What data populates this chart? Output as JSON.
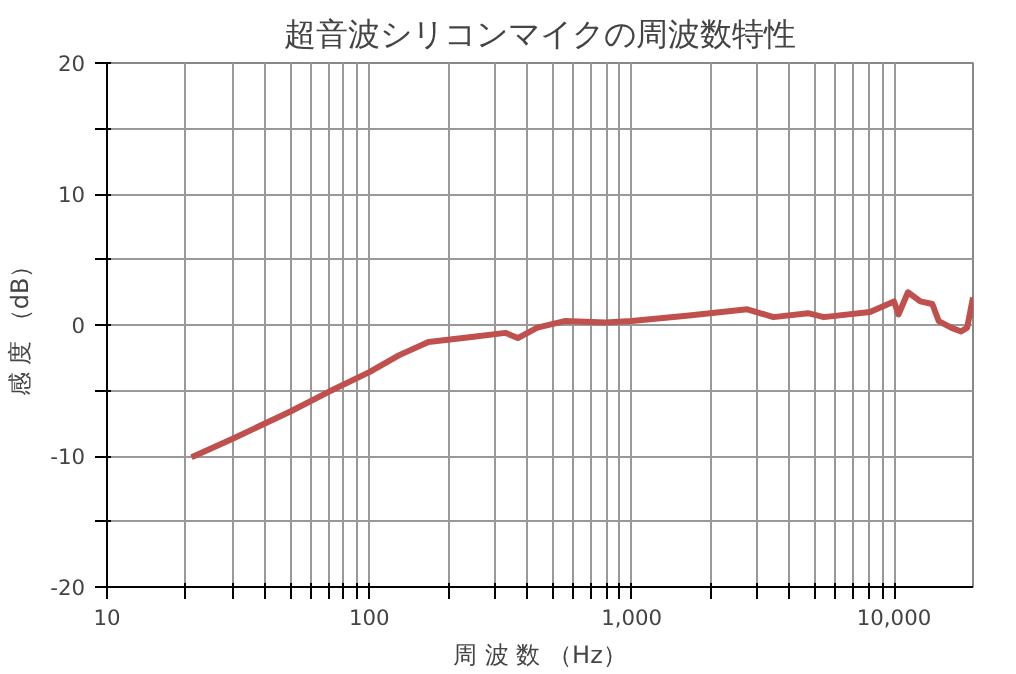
{
  "chart_data": {
    "type": "line",
    "title": "超音波シリコンマイクの周波数特性",
    "xlabel": "周 波 数 （Hz）",
    "ylabel": "感 度 （dB）",
    "log": "x",
    "grid": true,
    "x": [
      21,
      30,
      50,
      70,
      100,
      130,
      168,
      250,
      330,
      368,
      437,
      555,
      794,
      1000,
      1620,
      2760,
      3470,
      4700,
      5400,
      8100,
      10000,
      10400,
      11300,
      12600,
      14000,
      14800,
      16500,
      18000,
      19000,
      20000
    ],
    "series": [
      {
        "color": "#c0504d",
        "values": [
          -10.1,
          -8.7,
          -6.6,
          -5.1,
          -3.6,
          -2.3,
          -1.3,
          -0.9,
          -0.6,
          -1.0,
          -0.2,
          0.3,
          0.2,
          0.3,
          0.7,
          1.2,
          0.6,
          0.9,
          0.6,
          1.0,
          1.8,
          0.8,
          2.5,
          1.8,
          1.6,
          0.3,
          -0.2,
          -0.5,
          -0.2,
          2.1
        ]
      }
    ],
    "xlim": [
      10,
      20000
    ],
    "ylim": [
      -20,
      20
    ],
    "xticks": [
      10,
      {
        "value": 20,
        "label": null
      },
      {
        "value": 30,
        "label": null
      },
      {
        "value": 40,
        "label": null
      },
      {
        "value": 50,
        "label": null
      },
      {
        "value": 60,
        "label": null
      },
      {
        "value": 70,
        "label": null
      },
      {
        "value": 80,
        "label": null
      },
      {
        "value": 90,
        "label": null
      },
      100,
      {
        "value": 200,
        "label": null
      },
      {
        "value": 300,
        "label": null
      },
      {
        "value": 400,
        "label": null
      },
      {
        "value": 500,
        "label": null
      },
      {
        "value": 600,
        "label": null
      },
      {
        "value": 700,
        "label": null
      },
      {
        "value": 800,
        "label": null
      },
      {
        "value": 900,
        "label": null
      },
      {
        "value": 1000,
        "label": "1,000"
      },
      {
        "value": 2000,
        "label": null
      },
      {
        "value": 3000,
        "label": null
      },
      {
        "value": 4000,
        "label": null
      },
      {
        "value": 5000,
        "label": null
      },
      {
        "value": 6000,
        "label": null
      },
      {
        "value": 7000,
        "label": null
      },
      {
        "value": 8000,
        "label": null
      },
      {
        "value": 9000,
        "label": null
      },
      {
        "value": 10000,
        "label": "10,000"
      }
    ],
    "yticks": [
      -20,
      {
        "value": -15,
        "label": null
      },
      -10,
      {
        "value": -5,
        "label": null
      },
      0,
      {
        "value": 5,
        "label": null
      },
      10,
      {
        "value": 15,
        "label": null
      },
      20
    ]
  }
}
